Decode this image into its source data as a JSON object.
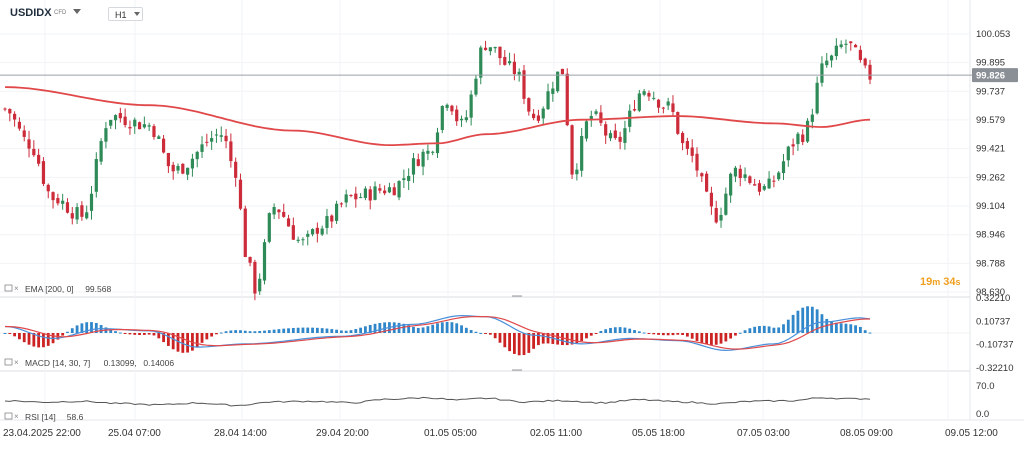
{
  "toolbar": {
    "symbol": "USDIDX",
    "symbol_tag": "CFD",
    "timeframe": "H1"
  },
  "colors": {
    "bull": "#2e8b57",
    "bear": "#cc2b3a",
    "ema": "#e0484a",
    "macd_line": "#4a90d9",
    "signal_line": "#e0484a",
    "hist_pos": "#2f86c9",
    "hist_neg": "#cc2222",
    "rsi": "#555555",
    "price_label_bg": "#8a8f95",
    "countdown": "#f0a020"
  },
  "price_scale": {
    "ticks": [
      "100.053",
      "99.895",
      "99.737",
      "99.579",
      "99.421",
      "99.262",
      "99.104",
      "98.946",
      "98.788",
      "98.630"
    ],
    "current_price": "99.826"
  },
  "countdown": {
    "minutes": "19",
    "m_unit": "m",
    "seconds": "34",
    "s_unit": "s"
  },
  "time_axis": {
    "labels": [
      "23.04.2025 22:00",
      "25.04 07:00",
      "28.04 14:00",
      "29.04 20:00",
      "01.05 05:00",
      "02.05 11:00",
      "05.05 18:00",
      "07.05 03:00",
      "08.05 09:00",
      "09.05 12:00"
    ]
  },
  "indicators": {
    "ema_label": "EMA [200, 0]",
    "ema_value": "99.568",
    "macd_label": "MACD [14, 30, 7]",
    "macd_value_1": "0.13099,",
    "macd_value_2": "0.14006",
    "rsi_label": "RSI [14]",
    "rsi_value": "58.6"
  },
  "macd_scale": {
    "ticks": [
      "0.32210",
      "0.10737",
      "-0.10737",
      "-0.32210"
    ]
  },
  "rsi_scale": {
    "ticks": [
      "70.0",
      "0.0"
    ]
  },
  "chart_data": {
    "type": "candlestick",
    "symbol": "USDIDX",
    "timeframe": "H1",
    "ylim": [
      98.63,
      100.13
    ],
    "ema_keypoints": [
      [
        0,
        99.76
      ],
      [
        30,
        99.66
      ],
      [
        60,
        99.52
      ],
      [
        80,
        99.44
      ],
      [
        90,
        99.45
      ],
      [
        100,
        99.5
      ],
      [
        120,
        99.58
      ],
      [
        140,
        99.6
      ],
      [
        160,
        99.56
      ],
      [
        170,
        99.54
      ],
      [
        180,
        99.58
      ]
    ],
    "candle_keypoints": [
      [
        0,
        99.64
      ],
      [
        5,
        99.45
      ],
      [
        10,
        99.15
      ],
      [
        16,
        99.05
      ],
      [
        22,
        99.6
      ],
      [
        30,
        99.55
      ],
      [
        35,
        99.3
      ],
      [
        45,
        99.5
      ],
      [
        48,
        99.3
      ],
      [
        50,
        98.85
      ],
      [
        52,
        98.65
      ],
      [
        56,
        99.1
      ],
      [
        62,
        98.9
      ],
      [
        66,
        99.0
      ],
      [
        72,
        99.15
      ],
      [
        80,
        99.2
      ],
      [
        88,
        99.4
      ],
      [
        92,
        99.7
      ],
      [
        95,
        99.55
      ],
      [
        100,
        100.0
      ],
      [
        106,
        99.85
      ],
      [
        110,
        99.6
      ],
      [
        116,
        99.85
      ],
      [
        118,
        99.3
      ],
      [
        122,
        99.6
      ],
      [
        127,
        99.45
      ],
      [
        133,
        99.75
      ],
      [
        138,
        99.65
      ],
      [
        142,
        99.4
      ],
      [
        148,
        99.05
      ],
      [
        152,
        99.3
      ],
      [
        158,
        99.2
      ],
      [
        166,
        99.5
      ],
      [
        171,
        99.9
      ],
      [
        175,
        100.0
      ],
      [
        180,
        99.82
      ]
    ],
    "macd_keypoints": [
      [
        0,
        0.06
      ],
      [
        10,
        -0.05
      ],
      [
        20,
        0.04
      ],
      [
        30,
        0.02
      ],
      [
        40,
        -0.13
      ],
      [
        50,
        -0.1
      ],
      [
        70,
        -0.03
      ],
      [
        85,
        0.08
      ],
      [
        95,
        0.16
      ],
      [
        100,
        0.15
      ],
      [
        110,
        -0.02
      ],
      [
        120,
        -0.1
      ],
      [
        130,
        -0.05
      ],
      [
        140,
        -0.07
      ],
      [
        150,
        -0.16
      ],
      [
        160,
        -0.1
      ],
      [
        170,
        0.1
      ],
      [
        178,
        0.14
      ],
      [
        180,
        0.13
      ]
    ],
    "rsi_keypoints": [
      [
        0,
        52
      ],
      [
        8,
        47
      ],
      [
        16,
        50
      ],
      [
        24,
        42
      ],
      [
        32,
        38
      ],
      [
        40,
        44
      ],
      [
        48,
        36
      ],
      [
        56,
        48
      ],
      [
        64,
        50
      ],
      [
        72,
        45
      ],
      [
        80,
        57
      ],
      [
        88,
        62
      ],
      [
        94,
        54
      ],
      [
        100,
        60
      ],
      [
        108,
        48
      ],
      [
        116,
        52
      ],
      [
        124,
        45
      ],
      [
        132,
        55
      ],
      [
        140,
        48
      ],
      [
        148,
        42
      ],
      [
        156,
        50
      ],
      [
        164,
        52
      ],
      [
        170,
        62
      ],
      [
        176,
        58
      ],
      [
        180,
        58.6
      ]
    ]
  }
}
